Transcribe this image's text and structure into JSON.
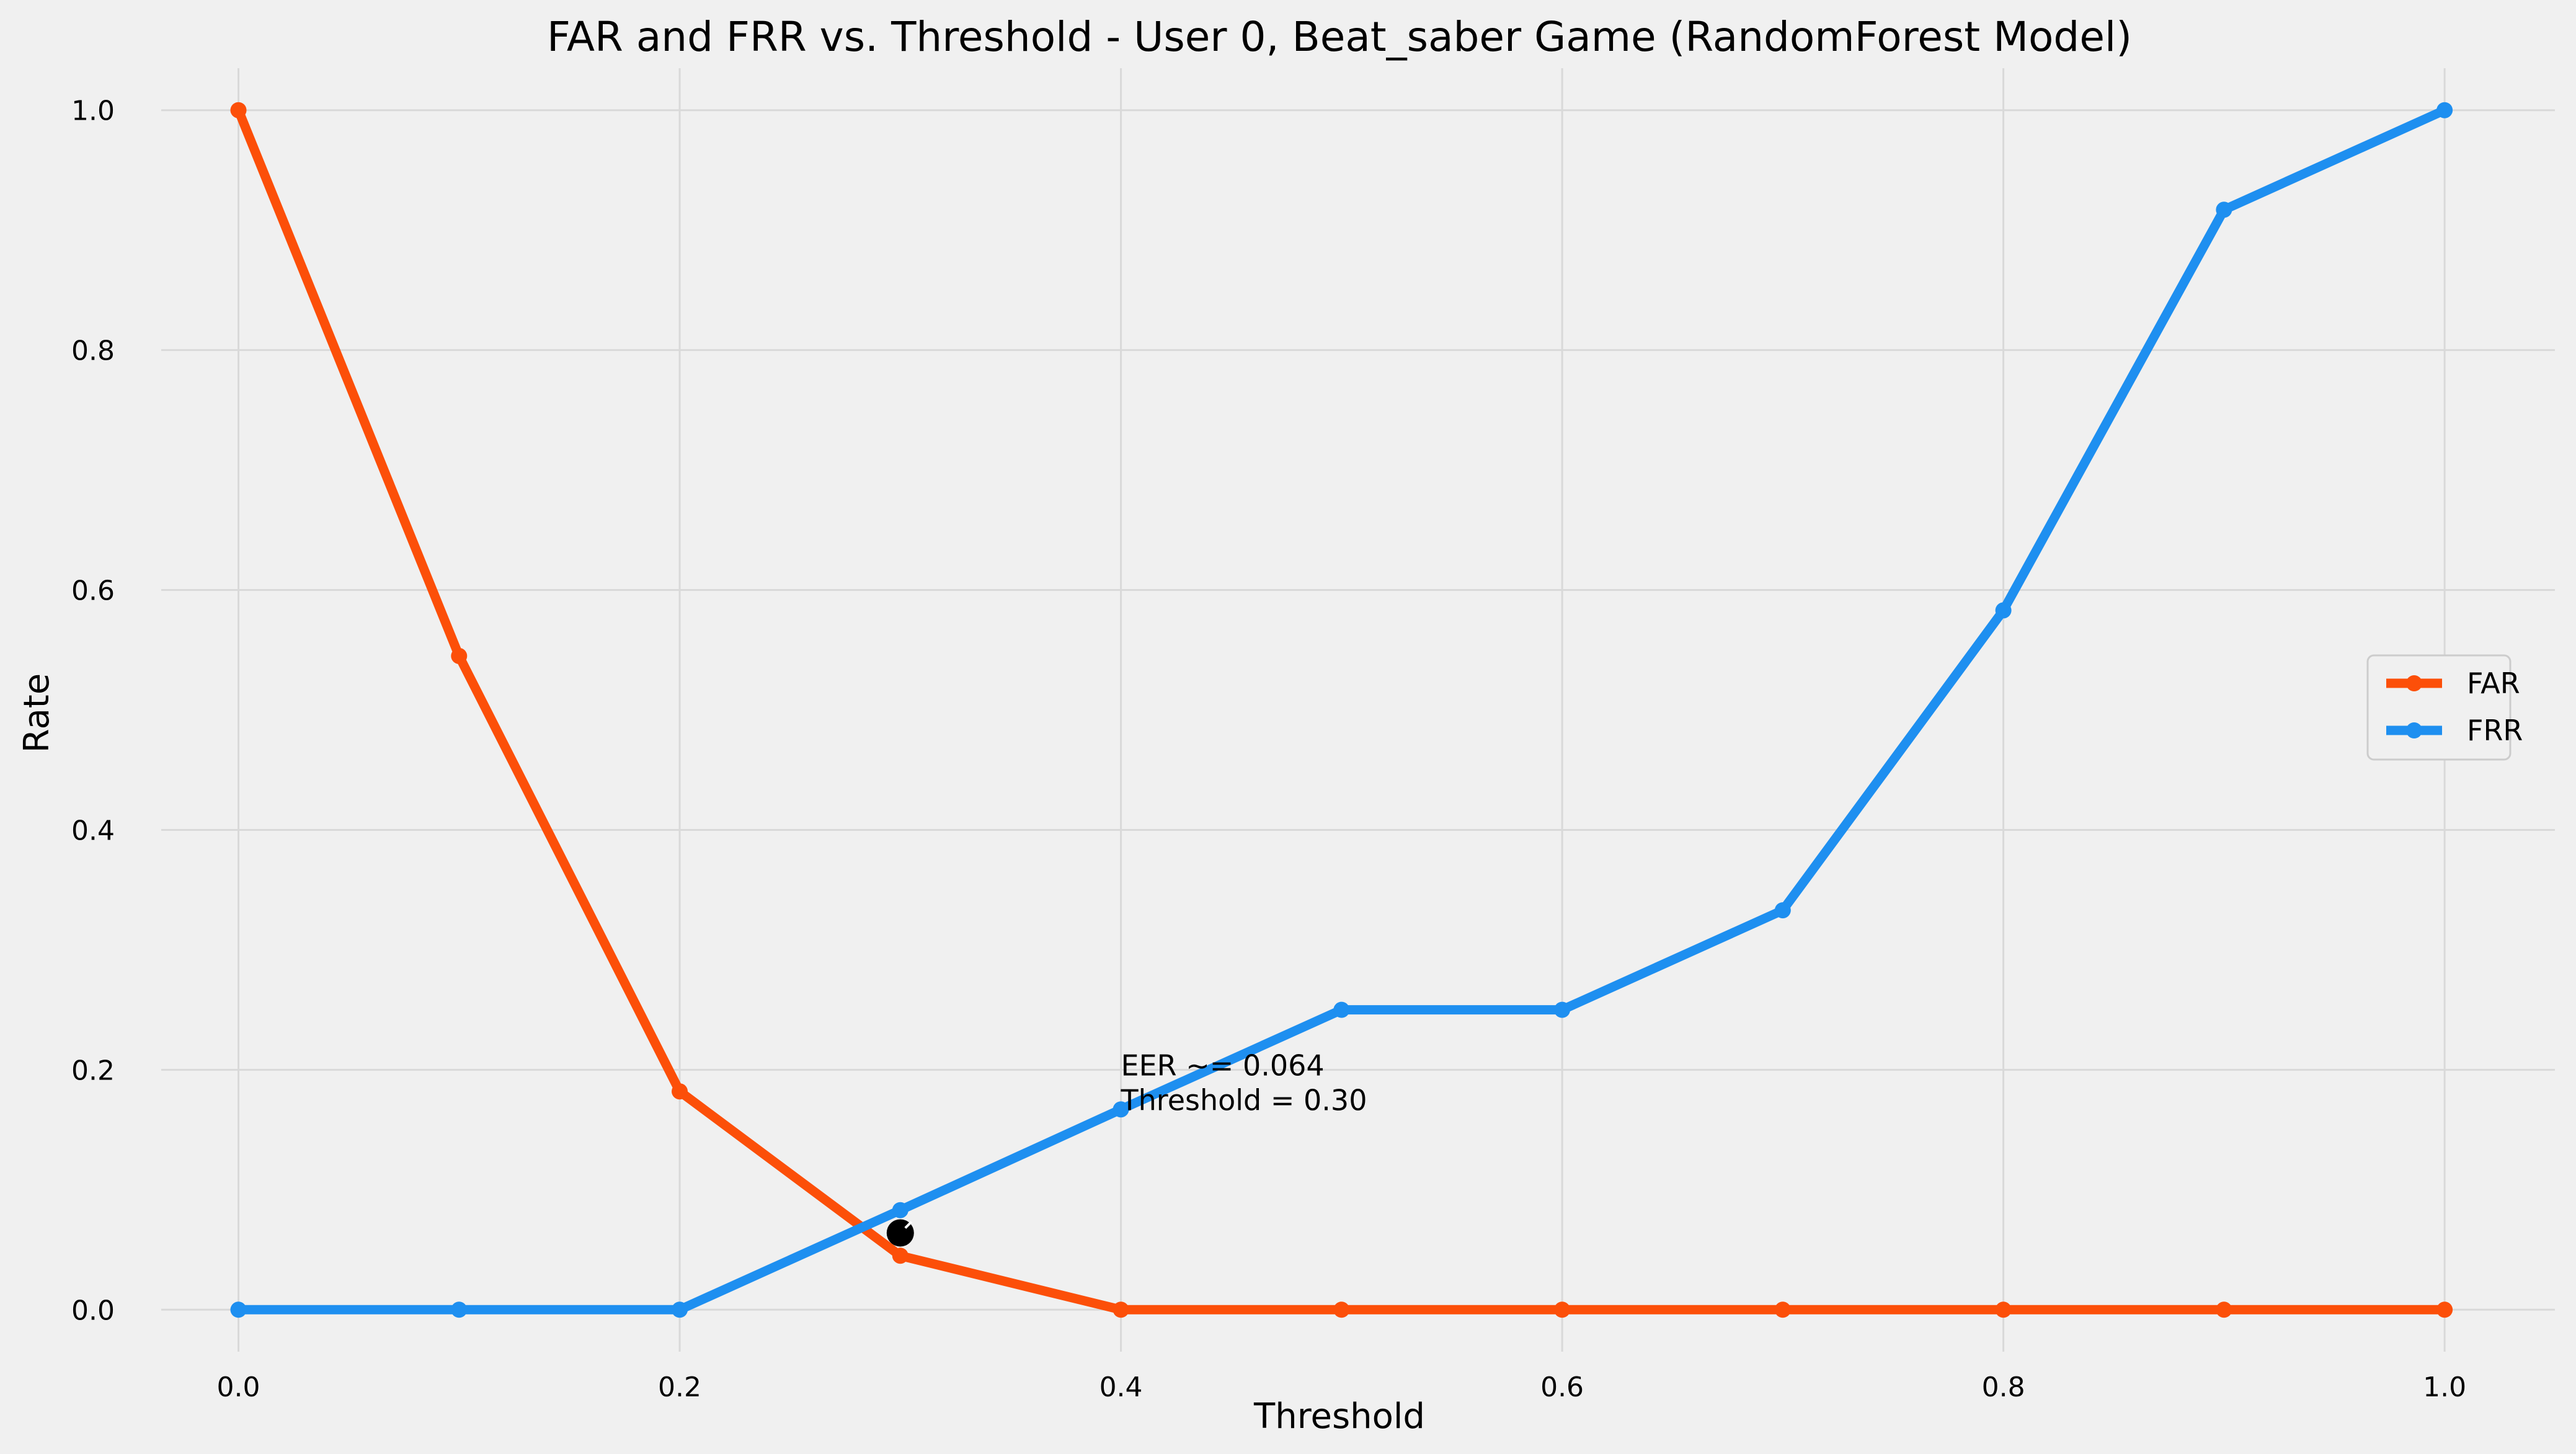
{
  "chart_data": {
    "type": "line",
    "title": "FAR and FRR vs. Threshold - User 0, Beat_saber Game (RandomForest Model)",
    "xlabel": "Threshold",
    "ylabel": "Rate",
    "xlim": [
      -0.035,
      1.05
    ],
    "ylim": [
      -0.035,
      1.035
    ],
    "xticks": [
      0.0,
      0.2,
      0.4,
      0.6,
      0.8,
      1.0
    ],
    "xtick_labels": [
      "0.0",
      "0.2",
      "0.4",
      "0.6",
      "0.8",
      "1.0"
    ],
    "yticks": [
      0.0,
      0.2,
      0.4,
      0.6,
      0.8,
      1.0
    ],
    "ytick_labels": [
      "0.0",
      "0.2",
      "0.4",
      "0.6",
      "0.8",
      "1.0"
    ],
    "grid": true,
    "legend_position": "center-right",
    "x": [
      0.0,
      0.1,
      0.2,
      0.3,
      0.4,
      0.5,
      0.6,
      0.7,
      0.8,
      0.9,
      1.0
    ],
    "series": [
      {
        "name": "FAR",
        "color": "#fc4f09",
        "values": [
          1.0,
          0.545,
          0.182,
          0.045,
          0.0,
          0.0,
          0.0,
          0.0,
          0.0,
          0.0,
          0.0
        ]
      },
      {
        "name": "FRR",
        "color": "#1e8ff0",
        "values": [
          0.0,
          0.0,
          0.0,
          0.083,
          0.167,
          0.25,
          0.25,
          0.333,
          0.583,
          0.917,
          1.0
        ]
      }
    ],
    "eer_point": {
      "x": 0.3,
      "y": 0.064,
      "color": "#000000"
    },
    "annotation": {
      "line1": "EER ~= 0.064",
      "line2": "Threshold = 0.30",
      "x": 0.4,
      "y": 0.185
    }
  }
}
